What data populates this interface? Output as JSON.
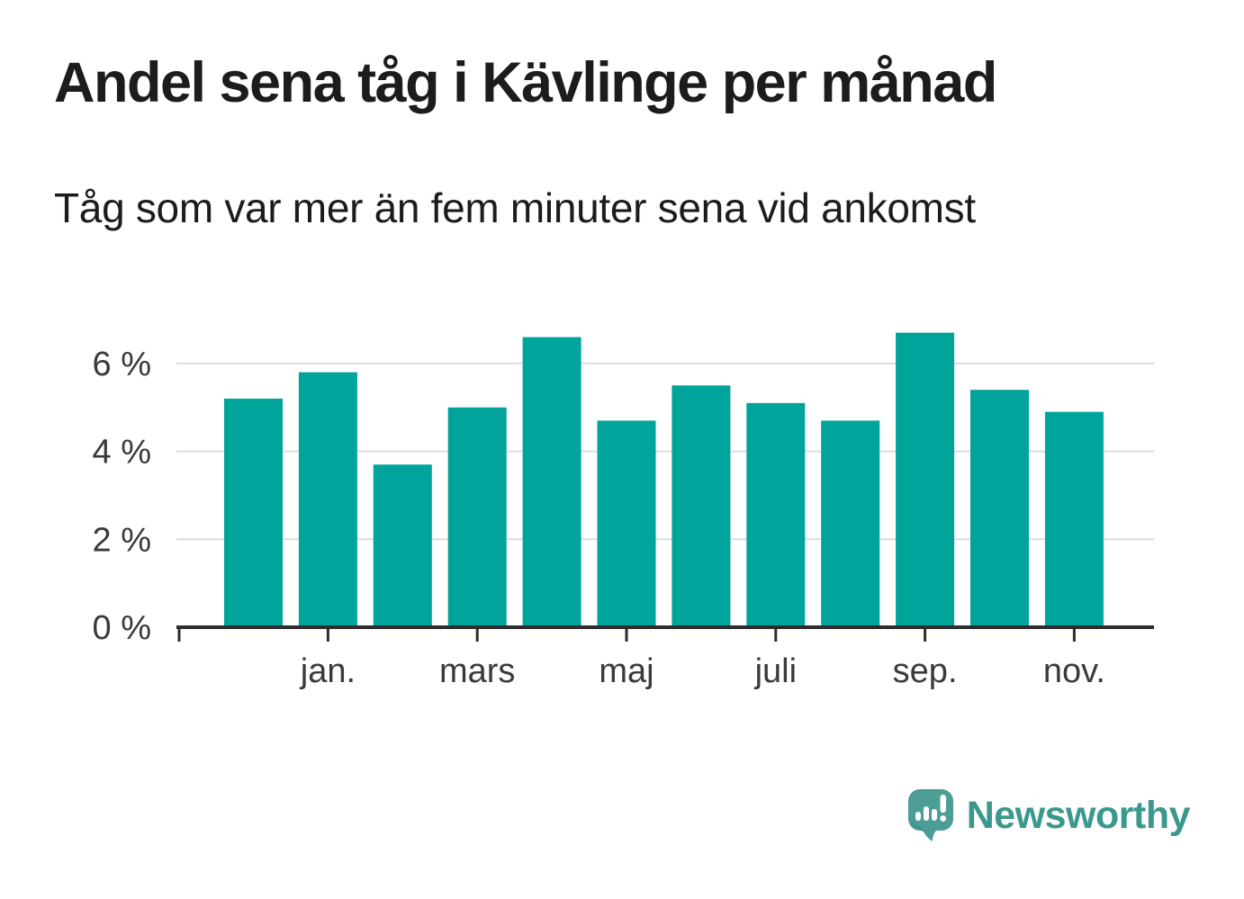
{
  "header": {
    "title": "Andel sena tåg i Kävlinge per månad",
    "subtitle": "Tåg som var mer än fem minuter sena vid ankomst"
  },
  "chart_data": {
    "type": "bar",
    "title": "Andel sena tåg i Kävlinge per månad",
    "subtitle": "Tåg som var mer än fem minuter sena vid ankomst",
    "unit": "%",
    "categories": [
      "",
      "jan.",
      "",
      "mars",
      "",
      "maj",
      "",
      "juli",
      "",
      "sep.",
      "",
      "nov."
    ],
    "values": [
      5.2,
      5.8,
      3.7,
      5.0,
      6.6,
      4.7,
      5.5,
      5.1,
      4.7,
      6.7,
      5.4,
      4.9
    ],
    "x_axis": {
      "tick_labels": [
        "jan.",
        "mars",
        "maj",
        "juli",
        "sep.",
        "nov."
      ],
      "tick_bar_indices": [
        1,
        3,
        5,
        7,
        9,
        11
      ]
    },
    "y_axis": {
      "tick_labels": [
        "0 %",
        "2 %",
        "4 %",
        "6 %"
      ],
      "tick_values": [
        0,
        2,
        4,
        6
      ]
    },
    "ylim": [
      0,
      7.2
    ],
    "grid": true,
    "legend": "none"
  },
  "colors": {
    "bar": "#00a49a",
    "axis": "#2d2d2d",
    "gridline": "#dddddd",
    "tick_text": "#3a3a3a",
    "heading_text": "#1c1c1c",
    "brand_teal": "#3a988c",
    "logo_bubble": "#4c9d95",
    "logo_bubble_shade": "#41918a"
  },
  "footer": {
    "brand": "Newsworthy",
    "logo_icon": "newsworthy-speech-bubble-bar-chart-icon"
  }
}
